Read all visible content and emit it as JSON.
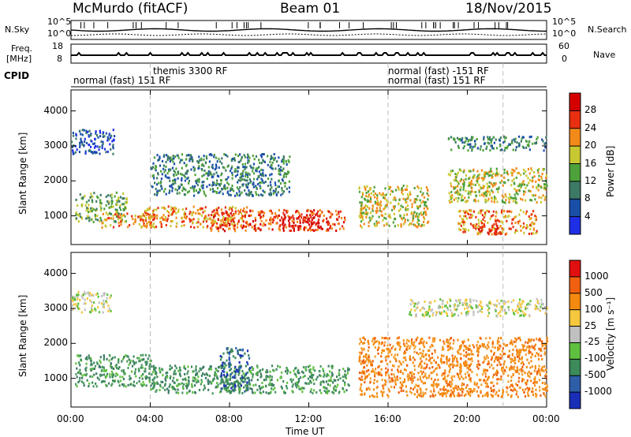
{
  "header": {
    "title": "McMurdo (fitACF)",
    "beam": "Beam 01",
    "date": "18/Nov/2015"
  },
  "status": {
    "nsky_label": "N.Sky",
    "nsearch_label": "N.Search",
    "freq_label_1": "Freq.",
    "freq_label_2": "[MHz]",
    "nave_label": "Nave",
    "cpid_label": "CPID",
    "left_ticks": [
      "10^5",
      "10^0",
      "18",
      "8"
    ],
    "right_ticks": [
      "10^5",
      "10^0",
      "60",
      "0"
    ],
    "cpid_segments": [
      {
        "label": "normal (fast)  151 RF",
        "start": 0.0,
        "end": 4.0
      },
      {
        "label": "themis 3300 RF",
        "start": 4.0,
        "end": 16.0
      },
      {
        "label": "normal (fast)  -151 RF",
        "start": 16.0,
        "end": 20.0
      },
      {
        "label": "normal (fast)  151 RF",
        "start": 16.0,
        "end": 20.0
      }
    ]
  },
  "chart_data": [
    {
      "type": "heatmap",
      "ylabel": "Slant Range [km]",
      "xlabel": "",
      "x_range": [
        0,
        24
      ],
      "ylim": [
        180,
        4600
      ],
      "yticks": [
        "1000",
        "2000",
        "3000",
        "4000"
      ],
      "colorbar": {
        "title": "Power [dB]",
        "ticks": [
          "4",
          "8",
          "12",
          "16",
          "20",
          "24",
          "28"
        ],
        "colors": [
          "#1f2fe6",
          "#1a4fa8",
          "#3d7a66",
          "#4ea13a",
          "#c8c832",
          "#f28a1a",
          "#e83010",
          "#d40000"
        ]
      },
      "echo_regions": [
        {
          "t0": 0.2,
          "t1": 2.8,
          "r0": 850,
          "r1": 1700,
          "level": 3
        },
        {
          "t0": 1.5,
          "t1": 4.2,
          "r0": 700,
          "r1": 1100,
          "level": 5
        },
        {
          "t0": 3.5,
          "t1": 9.0,
          "r0": 700,
          "r1": 1300,
          "level": 5
        },
        {
          "t0": 7.0,
          "t1": 13.8,
          "r0": 600,
          "r1": 1200,
          "level": 6
        },
        {
          "t0": 10.5,
          "t1": 12.5,
          "r0": 650,
          "r1": 1000,
          "level": 7
        },
        {
          "t0": 4.0,
          "t1": 11.0,
          "r0": 1600,
          "r1": 2800,
          "level": 2
        },
        {
          "t0": 0.0,
          "t1": 2.2,
          "r0": 2800,
          "r1": 3500,
          "level": 1
        },
        {
          "t0": 14.5,
          "t1": 18.0,
          "r0": 700,
          "r1": 1900,
          "level": 4
        },
        {
          "t0": 19.5,
          "t1": 23.5,
          "r0": 500,
          "r1": 1200,
          "level": 5
        },
        {
          "t0": 20.3,
          "t1": 21.5,
          "r0": 500,
          "r1": 800,
          "level": 7
        },
        {
          "t0": 19.0,
          "t1": 24.0,
          "r0": 1400,
          "r1": 2400,
          "level": 4
        },
        {
          "t0": 19.0,
          "t1": 24.0,
          "r0": 2900,
          "r1": 3300,
          "level": 2
        }
      ]
    },
    {
      "type": "heatmap",
      "ylabel": "Slant Range [km]",
      "xlabel": "Time UT",
      "x_range": [
        0,
        24
      ],
      "ylim": [
        180,
        4600
      ],
      "yticks": [
        "1000",
        "2000",
        "3000",
        "4000"
      ],
      "xticks": [
        "00:00",
        "04:00",
        "08:00",
        "12:00",
        "16:00",
        "20:00",
        "00:00"
      ],
      "colorbar": {
        "title": "Velocity [m s⁻¹]",
        "ticks": [
          "1000",
          "500",
          "100",
          "25",
          "-25",
          "-100",
          "-500",
          "-1000"
        ],
        "colors": [
          "#1a2fb8",
          "#2e5ea8",
          "#3d8a5a",
          "#5fc040",
          "#c0c0c0",
          "#f6c840",
          "#f48a10",
          "#f06010",
          "#e01010"
        ]
      },
      "echo_regions": [
        {
          "t0": 0.2,
          "t1": 4.0,
          "r0": 800,
          "r1": 1700,
          "class": "toward"
        },
        {
          "t0": 4.0,
          "t1": 14.0,
          "r0": 600,
          "r1": 1400,
          "class": "toward"
        },
        {
          "t0": 7.5,
          "t1": 9.0,
          "r0": 650,
          "r1": 1900,
          "class": "strong-toward"
        },
        {
          "t0": 14.5,
          "t1": 24.0,
          "r0": 500,
          "r1": 2200,
          "class": "away"
        },
        {
          "t0": 0.0,
          "t1": 2.0,
          "r0": 2900,
          "r1": 3500,
          "class": "low"
        },
        {
          "t0": 17.0,
          "t1": 24.0,
          "r0": 2800,
          "r1": 3300,
          "class": "low"
        }
      ]
    }
  ]
}
